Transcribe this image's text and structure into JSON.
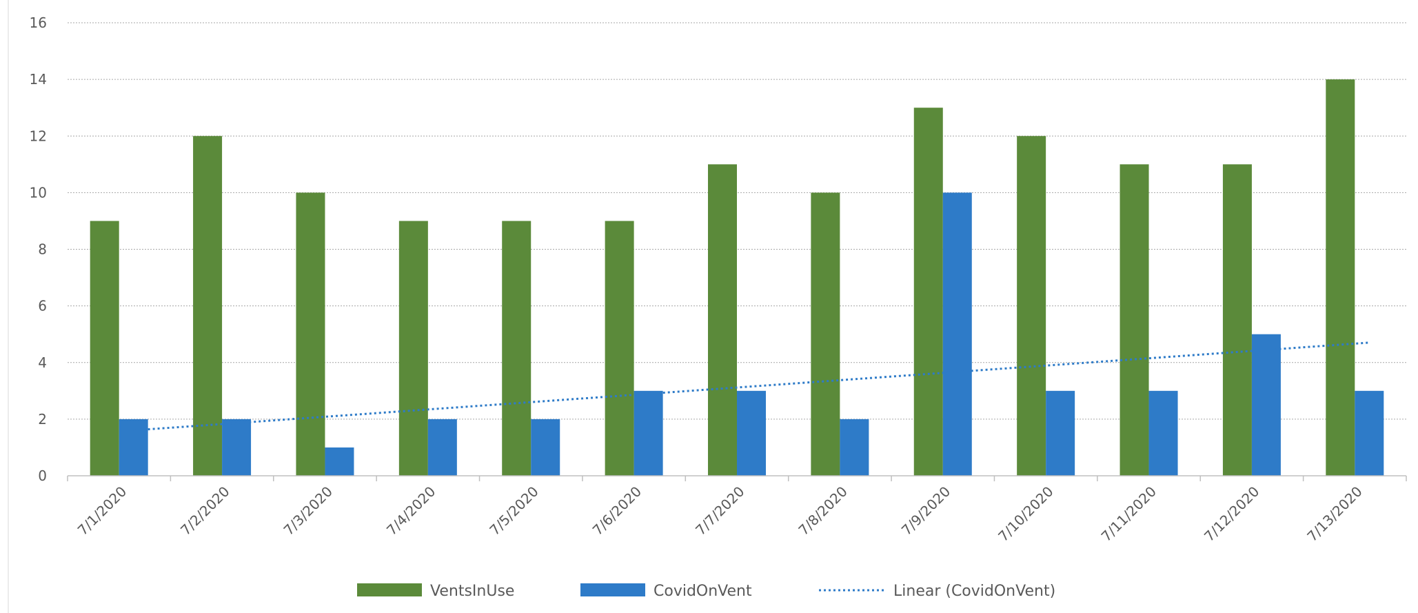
{
  "chart_data": {
    "type": "bar",
    "categories": [
      "7/1/2020",
      "7/2/2020",
      "7/3/2020",
      "7/4/2020",
      "7/5/2020",
      "7/6/2020",
      "7/7/2020",
      "7/8/2020",
      "7/9/2020",
      "7/10/2020",
      "7/11/2020",
      "7/12/2020",
      "7/13/2020"
    ],
    "series": [
      {
        "name": "VentsInUse",
        "type": "bar",
        "color": "#5b8a3a",
        "values": [
          9,
          12,
          10,
          9,
          9,
          9,
          11,
          10,
          13,
          12,
          11,
          11,
          14
        ]
      },
      {
        "name": "CovidOnVent",
        "type": "bar",
        "color": "#2e7bc8",
        "values": [
          2,
          2,
          1,
          2,
          2,
          3,
          3,
          2,
          10,
          3,
          3,
          5,
          3
        ]
      }
    ],
    "trendline": {
      "name": "Linear (CovidOnVent)",
      "of_series": "CovidOnVent",
      "type": "linear",
      "style": "dotted",
      "color": "#2e7bc8"
    },
    "title": "",
    "xlabel": "",
    "ylabel": "",
    "ylim": [
      0,
      16
    ],
    "yticks": [
      0,
      2,
      4,
      6,
      8,
      10,
      12,
      14,
      16
    ],
    "grid": true,
    "legend": "bottom"
  }
}
